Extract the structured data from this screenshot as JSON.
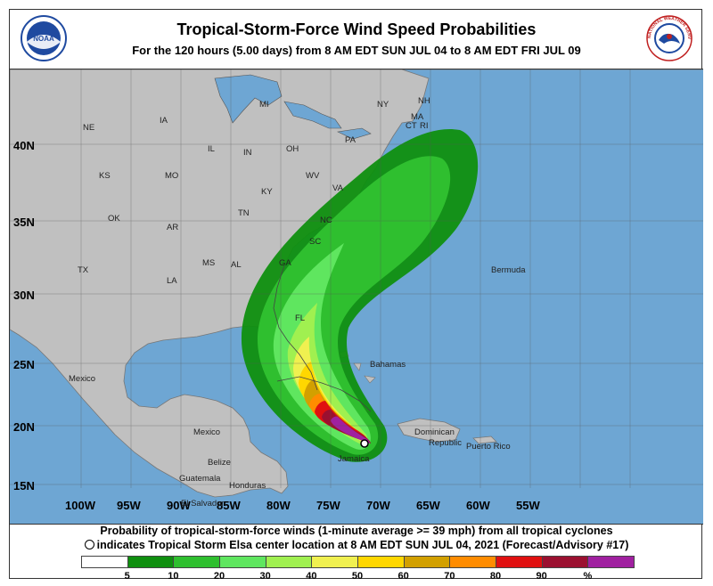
{
  "header": {
    "title": "Tropical-Storm-Force Wind Speed Probabilities",
    "subtitle": "For the 120 hours (5.00 days) from 8 AM EDT SUN JUL 04 to 8 AM EDT FRI JUL 09",
    "left_logo_text": "NOAA",
    "right_logo_text": "NATIONAL WEATHER SERVICE"
  },
  "map": {
    "ocean_color": "#6ea6d3",
    "land_color": "#c0c0c0",
    "lon_labels": [
      "100W",
      "95W",
      "90W",
      "85W",
      "80W",
      "75W",
      "70W",
      "65W",
      "60W",
      "55W"
    ],
    "lat_labels": [
      "40N",
      "35N",
      "30N",
      "25N",
      "20N",
      "15N"
    ],
    "place_labels": [
      "NE",
      "IA",
      "MI",
      "NY",
      "NH",
      "MA",
      "CT",
      "RI",
      "PA",
      "IL",
      "IN",
      "OH",
      "KS",
      "MO",
      "WV",
      "VA",
      "KY",
      "OK",
      "AR",
      "TN",
      "NC",
      "SC",
      "TX",
      "MS",
      "AL",
      "GA",
      "LA",
      "FL",
      "Mexico",
      "Bahamas",
      "Bermuda",
      "Mexico",
      "Belize",
      "Guatemala",
      "Honduras",
      "El Salvador",
      "Jamaica",
      "Dominican",
      "Republic",
      "Puerto Rico"
    ],
    "storm_marker": "storm-center"
  },
  "footer": {
    "line1": "Probability of tropical-storm-force winds (1-minute average >= 39 mph) from all tropical cyclones",
    "line2": "indicates Tropical Storm Elsa center location at 8 AM EDT SUN JUL 04, 2021 (Forecast/Advisory #17)"
  },
  "legend": {
    "colors": [
      "#ffffff",
      "#0f8f0f",
      "#2fbf2f",
      "#5fe65f",
      "#a0f050",
      "#f0f050",
      "#ffd700",
      "#d2a000",
      "#ff8c00",
      "#e01010",
      "#9b1030",
      "#a020a0"
    ],
    "labels": [
      "5",
      "10",
      "20",
      "30",
      "40",
      "50",
      "60",
      "70",
      "80",
      "90",
      "%"
    ]
  }
}
